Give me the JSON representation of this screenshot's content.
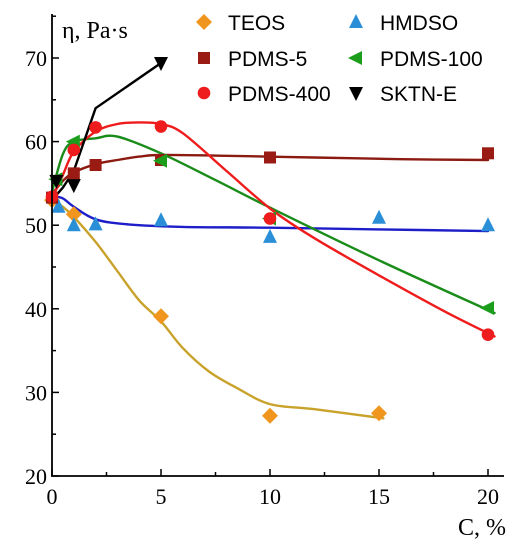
{
  "chart_data": {
    "type": "scatter",
    "ylabel": "η, Pa·s",
    "xlabel": "C, %",
    "xlim": [
      0,
      20.5
    ],
    "ylim": [
      20,
      75
    ],
    "x_ticks": [
      0,
      5,
      10,
      15,
      20
    ],
    "y_ticks": [
      20,
      30,
      40,
      50,
      60,
      70
    ],
    "legend_position": "top-right",
    "series": [
      {
        "name": "TEOS",
        "marker": "diamond",
        "marker_color": "#f0961e",
        "line_color": "#c8a22a",
        "points": [
          [
            0,
            53
          ],
          [
            1,
            51.3
          ],
          [
            5,
            39.1
          ],
          [
            10,
            27.2
          ],
          [
            15,
            27.5
          ]
        ],
        "curve": [
          [
            0,
            53
          ],
          [
            0.5,
            52.2
          ],
          [
            1,
            51
          ],
          [
            2,
            48
          ],
          [
            3,
            44.5
          ],
          [
            4,
            41
          ],
          [
            5,
            38.5
          ],
          [
            6,
            35.3
          ],
          [
            7.2,
            32.5
          ],
          [
            8.5,
            30.5
          ],
          [
            10,
            28.6
          ],
          [
            12,
            28
          ],
          [
            15.2,
            26.9
          ]
        ]
      },
      {
        "name": "HMDSO",
        "marker": "triangle-up",
        "marker_color": "#2b8fd8",
        "line_color": "#1e1ec8",
        "points": [
          [
            0.3,
            52.2
          ],
          [
            1,
            50
          ],
          [
            2,
            50.1
          ],
          [
            5,
            50.6
          ],
          [
            10,
            48.6
          ],
          [
            15,
            50.9
          ],
          [
            20,
            50
          ]
        ],
        "curve": [
          [
            0,
            53.5
          ],
          [
            0.5,
            53.2
          ],
          [
            1,
            52.2
          ],
          [
            2,
            50.7
          ],
          [
            3.5,
            50.1
          ],
          [
            6,
            49.8
          ],
          [
            10,
            49.7
          ],
          [
            15,
            49.5
          ],
          [
            20,
            49.3
          ]
        ]
      },
      {
        "name": "PDMS-5",
        "marker": "square",
        "marker_color": "#9a1a14",
        "line_color": "#8b1a10",
        "points": [
          [
            0,
            53.3
          ],
          [
            1,
            56.2
          ],
          [
            2,
            57.2
          ],
          [
            5,
            57.8
          ],
          [
            10,
            58.1
          ],
          [
            20,
            58.6
          ]
        ],
        "curve": [
          [
            0,
            53.7
          ],
          [
            0.5,
            55.3
          ],
          [
            1,
            56.3
          ],
          [
            2,
            57.3
          ],
          [
            3,
            57.8
          ],
          [
            4,
            58.2
          ],
          [
            5,
            58.4
          ],
          [
            8,
            58.3
          ],
          [
            12,
            58.1
          ],
          [
            16,
            57.9
          ],
          [
            20,
            57.8
          ]
        ]
      },
      {
        "name": "PDMS-100",
        "marker": "triangle-left",
        "marker_color": "#1c9e1c",
        "line_color": "#1a8c1a",
        "points": [
          [
            0.2,
            55.5
          ],
          [
            1,
            60
          ],
          [
            5,
            57.7
          ],
          [
            10,
            50.8
          ],
          [
            20,
            40.1
          ]
        ],
        "curve": [
          [
            0,
            54
          ],
          [
            0.5,
            58.5
          ],
          [
            1,
            60
          ],
          [
            2,
            60.4
          ],
          [
            3,
            60.6
          ],
          [
            5,
            58.6
          ],
          [
            7.5,
            55.4
          ],
          [
            10,
            52.1
          ],
          [
            15,
            45.8
          ],
          [
            20.3,
            39.5
          ]
        ]
      },
      {
        "name": "PDMS-400",
        "marker": "circle",
        "marker_color": "#ee1c1c",
        "line_color": "#ee1c1c",
        "points": [
          [
            0,
            53.4
          ],
          [
            1,
            59
          ],
          [
            2,
            61.7
          ],
          [
            5,
            61.8
          ],
          [
            10,
            50.8
          ],
          [
            20,
            36.9
          ]
        ],
        "curve": [
          [
            0,
            53.2
          ],
          [
            0.5,
            56
          ],
          [
            1,
            58.8
          ],
          [
            2,
            61.2
          ],
          [
            3,
            62.1
          ],
          [
            4,
            62.3
          ],
          [
            5,
            62.1
          ],
          [
            6,
            61
          ],
          [
            8,
            56.5
          ],
          [
            10,
            52
          ],
          [
            12,
            48.5
          ],
          [
            15,
            44
          ],
          [
            18,
            39.7
          ],
          [
            20.3,
            36.7
          ]
        ]
      },
      {
        "name": "SKTN-E",
        "marker": "triangle-down",
        "marker_color": "#000000",
        "line_color": "#000000",
        "points": [
          [
            0.2,
            55.3
          ],
          [
            1,
            54.8
          ],
          [
            5,
            69.4
          ]
        ],
        "curve": [
          [
            0,
            53
          ],
          [
            0.5,
            54.5
          ],
          [
            1,
            56.5
          ],
          [
            2,
            64
          ],
          [
            5,
            69.4
          ]
        ]
      }
    ]
  }
}
